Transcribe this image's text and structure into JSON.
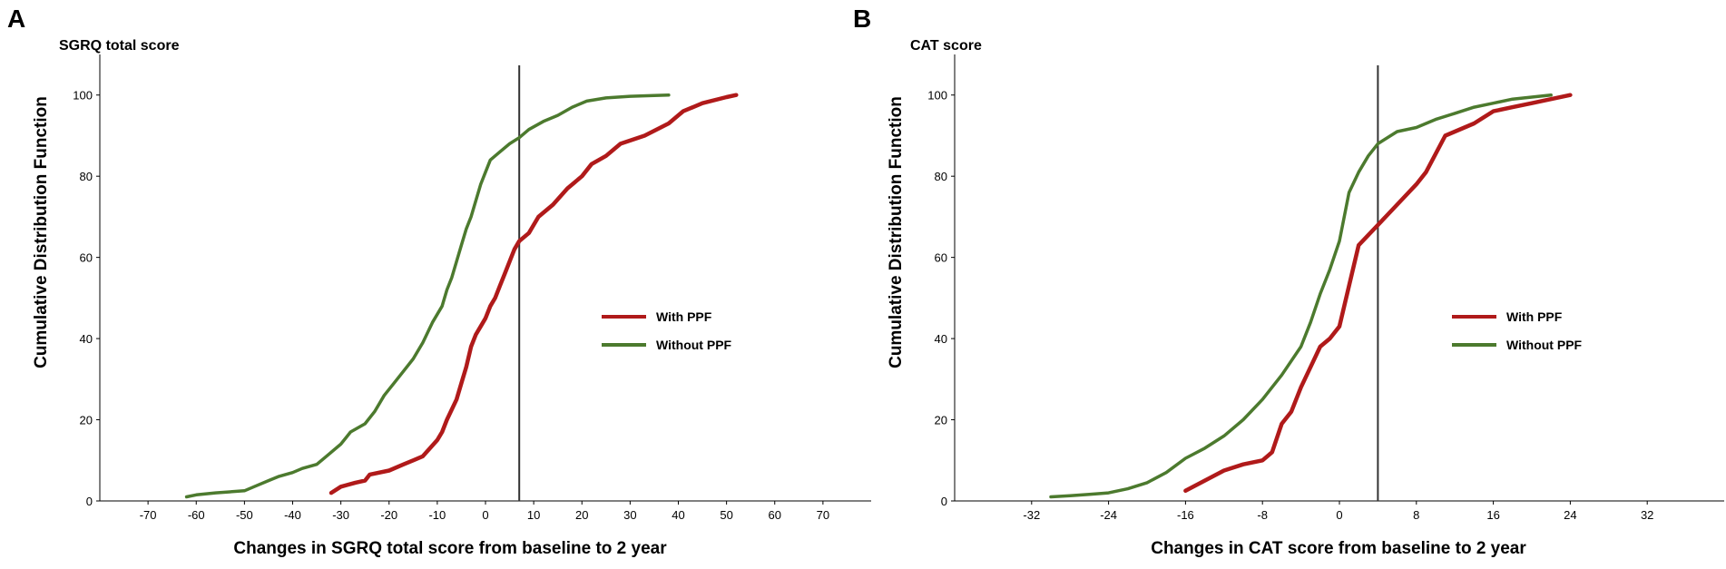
{
  "chart_data": [
    {
      "panel": "A",
      "type": "line",
      "title": "SGRQ total score",
      "xlabel": "Changes in SGRQ total score from baseline to 2 year",
      "ylabel": "Cumulative Distribution Function",
      "xlim": [
        -80,
        80
      ],
      "ylim": [
        0,
        110
      ],
      "xticks": [
        -70,
        -60,
        -50,
        -40,
        -30,
        -20,
        -10,
        0,
        10,
        20,
        30,
        40,
        50,
        60,
        70
      ],
      "yticks": [
        0,
        20,
        40,
        60,
        80,
        100
      ],
      "reference_line_x": 7,
      "legend_position": "middle-right",
      "series": [
        {
          "name": "With PPF",
          "color": "#b01a1a",
          "x": [
            -32,
            -30,
            -27,
            -25,
            -24,
            -20,
            -17,
            -15,
            -13,
            -10,
            -9,
            -8,
            -6,
            -5,
            -4,
            -3,
            -2,
            -1,
            0,
            1,
            2,
            3,
            4,
            5,
            6,
            7,
            9,
            11,
            14,
            17,
            20,
            22,
            25,
            28,
            33,
            38,
            41,
            45,
            50,
            52
          ],
          "y": [
            2,
            3.5,
            4.5,
            5,
            6.5,
            7.5,
            9,
            10,
            11,
            15,
            17,
            20,
            25,
            29,
            33,
            38,
            41,
            43,
            45,
            48,
            50,
            53,
            56,
            59,
            62,
            64,
            66,
            70,
            73,
            77,
            80,
            83,
            85,
            88,
            90,
            93,
            96,
            98,
            99.5,
            100
          ]
        },
        {
          "name": "Without PPF",
          "color": "#4c7a2e",
          "x": [
            -62,
            -60,
            -56,
            -50,
            -48,
            -45,
            -43,
            -40,
            -38,
            -35,
            -33,
            -30,
            -28,
            -25,
            -23,
            -21,
            -19,
            -17,
            -15,
            -13,
            -11,
            -9,
            -8,
            -7,
            -6,
            -5,
            -4,
            -3,
            -2,
            -1,
            0,
            1,
            3,
            5,
            7,
            9,
            12,
            15,
            18,
            21,
            25,
            30,
            35,
            38
          ],
          "y": [
            1,
            1.5,
            2,
            2.5,
            3.5,
            5,
            6,
            7,
            8,
            9,
            11,
            14,
            17,
            19,
            22,
            26,
            29,
            32,
            35,
            39,
            44,
            48,
            52,
            55,
            59,
            63,
            67,
            70,
            74,
            78,
            81,
            84,
            86,
            88,
            89.5,
            91.5,
            93.5,
            95,
            97,
            98.5,
            99.3,
            99.7,
            99.9,
            100
          ]
        }
      ]
    },
    {
      "panel": "B",
      "type": "line",
      "title": "CAT score",
      "xlabel": "Changes in CAT score from baseline to 2 year",
      "ylabel": "Cumulative Distribution Function",
      "xlim": [
        -40,
        40
      ],
      "ylim": [
        0,
        110
      ],
      "xticks": [
        -32,
        -24,
        -16,
        -8,
        0,
        8,
        16,
        24,
        32
      ],
      "yticks": [
        0,
        20,
        40,
        60,
        80,
        100
      ],
      "reference_line_x": 4,
      "legend_position": "middle-right",
      "series": [
        {
          "name": "With PPF",
          "color": "#b01a1a",
          "x": [
            -16,
            -14,
            -12,
            -10,
            -8,
            -7,
            -6,
            -5,
            -4,
            -3,
            -2,
            -1,
            0,
            2,
            4,
            6,
            8,
            9,
            11,
            14,
            16,
            18,
            20,
            22,
            24
          ],
          "y": [
            2.5,
            5,
            7.5,
            9,
            10,
            12,
            19,
            22,
            28,
            33,
            38,
            40,
            43,
            63,
            68,
            73,
            78,
            81,
            90,
            93,
            96,
            97,
            98,
            99,
            100
          ]
        },
        {
          "name": "Without PPF",
          "color": "#4c7a2e",
          "x": [
            -30,
            -28,
            -26,
            -24,
            -22,
            -20,
            -18,
            -16,
            -14,
            -12,
            -10,
            -8,
            -6,
            -4,
            -3,
            -2,
            -1,
            0,
            1,
            2,
            3,
            4,
            6,
            8,
            10,
            12,
            14,
            16,
            18,
            20,
            22
          ],
          "y": [
            1,
            1.3,
            1.6,
            2,
            3,
            4.5,
            7,
            10.5,
            13,
            16,
            20,
            25,
            31,
            38,
            44,
            51,
            57,
            64,
            76,
            81,
            85,
            88,
            91,
            92,
            94,
            95.5,
            97,
            98,
            99,
            99.5,
            100
          ]
        }
      ]
    }
  ]
}
